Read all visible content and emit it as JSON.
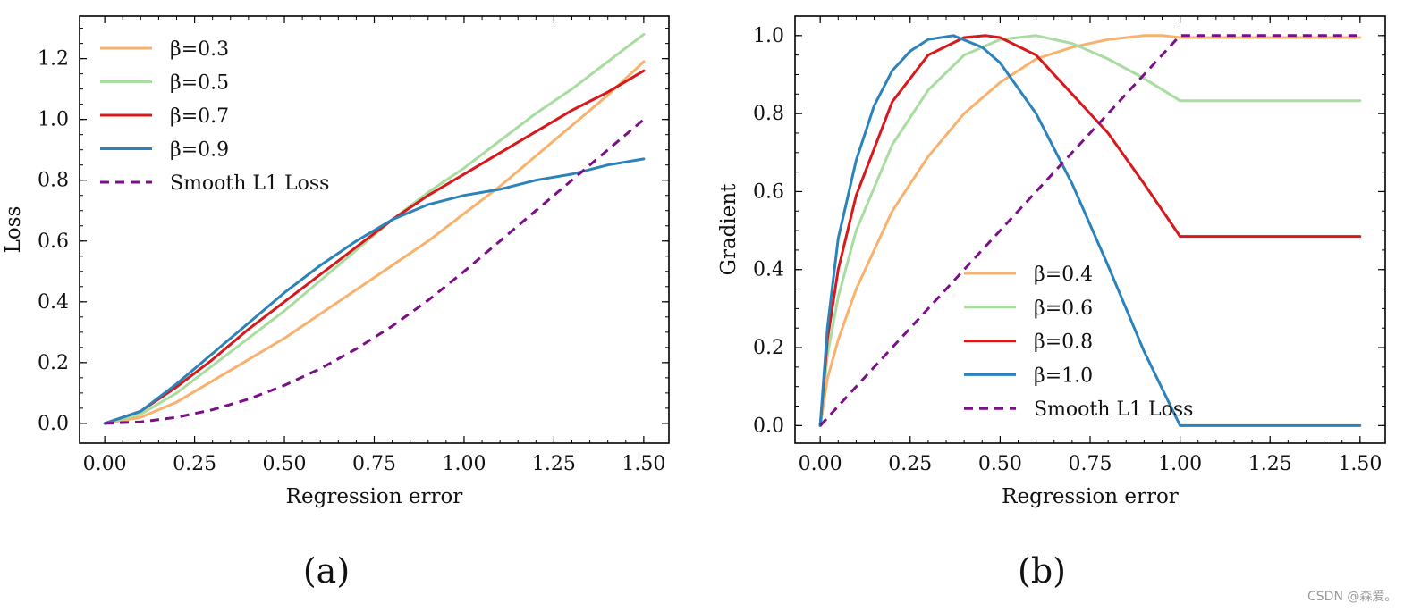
{
  "watermark": "CSDN @森爱。",
  "chart_data": [
    {
      "type": "line",
      "caption": "(a)",
      "xlabel": "Regression error",
      "ylabel": "Loss",
      "xlim": [
        -0.07,
        1.57
      ],
      "ylim": [
        -0.065,
        1.34
      ],
      "xticks": [
        "0.00",
        "0.25",
        "0.50",
        "0.75",
        "1.00",
        "1.25",
        "1.50"
      ],
      "yticks": [
        "0.0",
        "0.2",
        "0.4",
        "0.6",
        "0.8",
        "1.0",
        "1.2"
      ],
      "legend_position": "top-left",
      "x": [
        0,
        0.1,
        0.2,
        0.3,
        0.4,
        0.5,
        0.6,
        0.7,
        0.8,
        0.9,
        1.0,
        1.1,
        1.2,
        1.3,
        1.4,
        1.5
      ],
      "series": [
        {
          "name": "β=0.3",
          "color": "#F9B16E",
          "dash": false,
          "values": [
            0,
            0.02,
            0.07,
            0.14,
            0.21,
            0.28,
            0.36,
            0.44,
            0.52,
            0.6,
            0.69,
            0.78,
            0.88,
            0.98,
            1.08,
            1.19
          ]
        },
        {
          "name": "β=0.5",
          "color": "#A8DCA0",
          "dash": false,
          "values": [
            0,
            0.03,
            0.1,
            0.19,
            0.28,
            0.37,
            0.47,
            0.57,
            0.67,
            0.76,
            0.84,
            0.93,
            1.02,
            1.1,
            1.19,
            1.28
          ]
        },
        {
          "name": "β=0.7",
          "color": "#D7191C",
          "dash": false,
          "values": [
            0,
            0.04,
            0.12,
            0.21,
            0.31,
            0.4,
            0.49,
            0.58,
            0.67,
            0.75,
            0.82,
            0.89,
            0.96,
            1.03,
            1.09,
            1.16
          ]
        },
        {
          "name": "β=0.9",
          "color": "#2B83BA",
          "dash": false,
          "values": [
            0,
            0.04,
            0.13,
            0.23,
            0.33,
            0.43,
            0.52,
            0.6,
            0.67,
            0.72,
            0.75,
            0.77,
            0.8,
            0.82,
            0.85,
            0.87
          ]
        },
        {
          "name": "Smooth L1 Loss",
          "color": "#7B0F87",
          "dash": true,
          "values": [
            0,
            0.005,
            0.02,
            0.045,
            0.08,
            0.125,
            0.18,
            0.245,
            0.32,
            0.405,
            0.5,
            0.6,
            0.7,
            0.8,
            0.9,
            1.0
          ]
        }
      ]
    },
    {
      "type": "line",
      "caption": "(b)",
      "xlabel": "Regression error",
      "ylabel": "Gradient",
      "xlim": [
        -0.07,
        1.57
      ],
      "ylim": [
        -0.045,
        1.05
      ],
      "xticks": [
        "0.00",
        "0.25",
        "0.50",
        "0.75",
        "1.00",
        "1.25",
        "1.50"
      ],
      "yticks": [
        "0.0",
        "0.2",
        "0.4",
        "0.6",
        "0.8",
        "1.0"
      ],
      "legend_position": "lower-center",
      "series": [
        {
          "name": "β=0.4",
          "color": "#F9B16E",
          "dash": false,
          "x": [
            0,
            0.02,
            0.05,
            0.1,
            0.2,
            0.3,
            0.4,
            0.5,
            0.6,
            0.7,
            0.8,
            0.9,
            0.95,
            1.0,
            1.5
          ],
          "values": [
            0,
            0.12,
            0.22,
            0.35,
            0.55,
            0.69,
            0.8,
            0.88,
            0.94,
            0.97,
            0.99,
            1.0,
            1.0,
            0.995,
            0.995
          ]
        },
        {
          "name": "β=0.6",
          "color": "#A8DCA0",
          "dash": false,
          "x": [
            0,
            0.02,
            0.05,
            0.1,
            0.2,
            0.3,
            0.4,
            0.5,
            0.6,
            0.7,
            0.8,
            0.9,
            1.0,
            1.5
          ],
          "values": [
            0,
            0.18,
            0.33,
            0.5,
            0.72,
            0.86,
            0.95,
            0.99,
            1.0,
            0.98,
            0.94,
            0.89,
            0.833,
            0.833
          ]
        },
        {
          "name": "β=0.8",
          "color": "#D7191C",
          "dash": false,
          "x": [
            0,
            0.02,
            0.05,
            0.1,
            0.2,
            0.3,
            0.4,
            0.46,
            0.5,
            0.6,
            0.7,
            0.8,
            0.9,
            1.0,
            1.5
          ],
          "values": [
            0,
            0.22,
            0.4,
            0.59,
            0.83,
            0.95,
            0.995,
            1.0,
            0.995,
            0.95,
            0.85,
            0.75,
            0.62,
            0.485,
            0.485
          ]
        },
        {
          "name": "β=1.0",
          "color": "#2B83BA",
          "dash": false,
          "x": [
            0,
            0.02,
            0.05,
            0.1,
            0.15,
            0.2,
            0.25,
            0.3,
            0.37,
            0.45,
            0.5,
            0.6,
            0.7,
            0.8,
            0.9,
            1.0,
            1.5
          ],
          "values": [
            0,
            0.25,
            0.48,
            0.68,
            0.82,
            0.91,
            0.96,
            0.99,
            1.0,
            0.97,
            0.93,
            0.8,
            0.62,
            0.41,
            0.19,
            0.0,
            0.0
          ]
        },
        {
          "name": "Smooth L1 Loss",
          "color": "#7B0F87",
          "dash": true,
          "x": [
            0,
            1.0,
            1.5
          ],
          "values": [
            0,
            1.0,
            1.0
          ]
        }
      ]
    }
  ]
}
